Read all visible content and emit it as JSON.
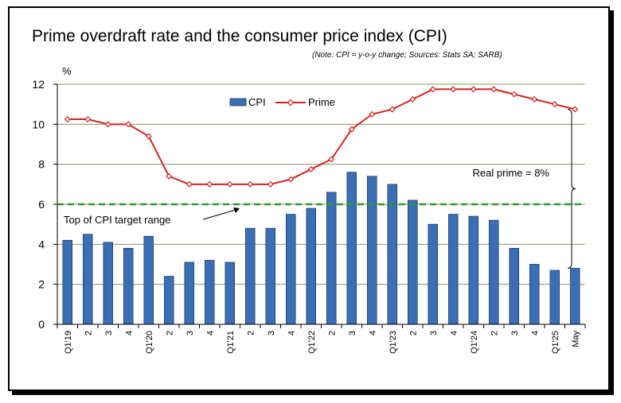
{
  "title": "Prime overdraft rate and the consumer price index (CPI)",
  "note": "(Note: CPI = y-o-y change; Sources: Stats SA; SARB)",
  "chart_data": {
    "type": "bar",
    "ylabel": "%",
    "ylim": [
      0,
      12
    ],
    "yticks": [
      0,
      2,
      4,
      6,
      8,
      10,
      12
    ],
    "grid": true,
    "legend_position": "top-center",
    "categories": [
      "Q1'19",
      "2",
      "3",
      "4",
      "Q1'20",
      "2",
      "3",
      "4",
      "Q1'21",
      "2",
      "3",
      "4",
      "Q1'22",
      "2",
      "3",
      "4",
      "Q1'23",
      "2",
      "3",
      "4",
      "Q1'24",
      "2",
      "3",
      "4",
      "Q1'25",
      "May"
    ],
    "series": [
      {
        "name": "CPI",
        "type": "bar",
        "color": "#3a6fb5",
        "values": [
          4.2,
          4.5,
          4.1,
          3.8,
          4.4,
          2.4,
          3.1,
          3.2,
          3.1,
          4.8,
          4.8,
          5.5,
          5.8,
          6.6,
          7.6,
          7.4,
          7.0,
          6.2,
          5.0,
          5.5,
          5.4,
          5.2,
          3.8,
          3.0,
          2.7,
          2.8
        ]
      },
      {
        "name": "Prime",
        "type": "line",
        "color": "#d92020",
        "values": [
          10.25,
          10.25,
          10.0,
          10.0,
          9.4,
          7.4,
          7.0,
          7.0,
          7.0,
          7.0,
          7.0,
          7.25,
          7.75,
          8.25,
          9.75,
          10.5,
          10.75,
          11.25,
          11.75,
          11.75,
          11.75,
          11.75,
          11.5,
          11.25,
          11.0,
          10.75
        ]
      }
    ],
    "reference_line": {
      "value": 6,
      "color": "#2e9a2e",
      "label": "Top of CPI target range"
    },
    "bracket_annotation": {
      "label": "Real prime = 8%"
    }
  }
}
